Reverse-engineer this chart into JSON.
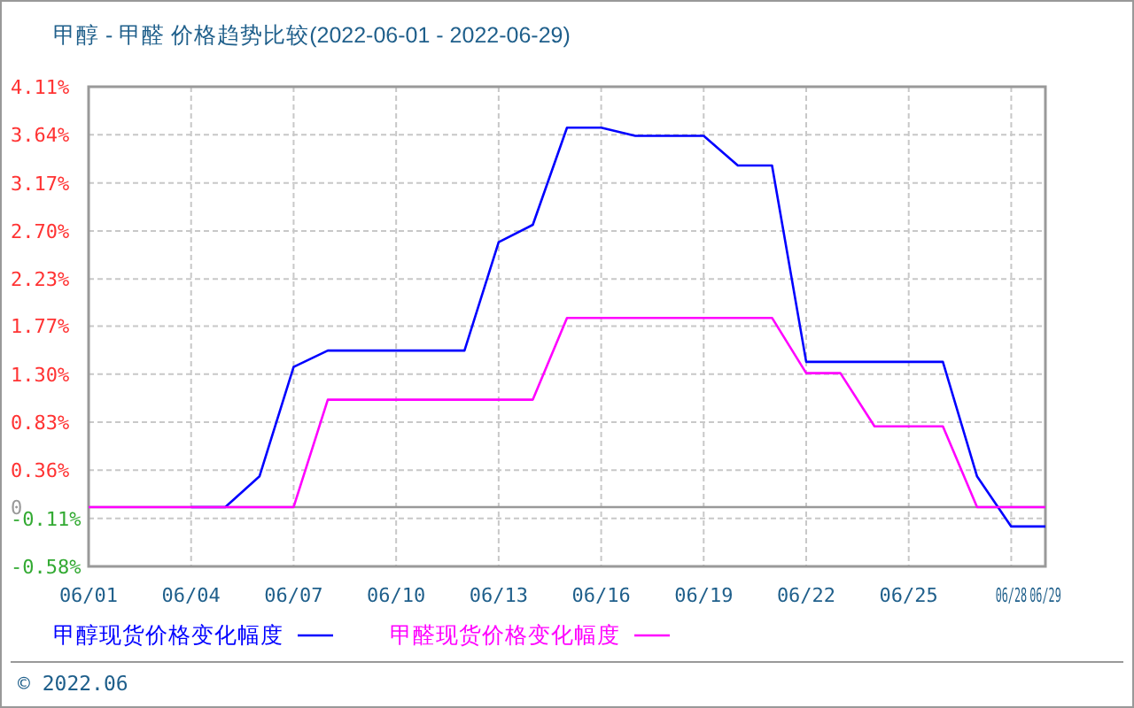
{
  "chart_data": {
    "type": "line",
    "title": "甲醇 - 甲醛 价格趋势比较(2022-06-01 - 2022-06-29)",
    "x": [
      "2022-06-01",
      "2022-06-02",
      "2022-06-03",
      "2022-06-04",
      "2022-06-05",
      "2022-06-06",
      "2022-06-07",
      "2022-06-08",
      "2022-06-09",
      "2022-06-10",
      "2022-06-11",
      "2022-06-12",
      "2022-06-13",
      "2022-06-14",
      "2022-06-15",
      "2022-06-16",
      "2022-06-17",
      "2022-06-18",
      "2022-06-19",
      "2022-06-20",
      "2022-06-21",
      "2022-06-22",
      "2022-06-23",
      "2022-06-24",
      "2022-06-25",
      "2022-06-26",
      "2022-06-27",
      "2022-06-28",
      "2022-06-29"
    ],
    "series": [
      {
        "name": "甲醇现货价格变化幅度",
        "color": "#0000ff",
        "values": [
          null,
          null,
          null,
          0,
          0,
          0.3,
          1.37,
          1.53,
          1.53,
          1.53,
          1.53,
          1.53,
          2.59,
          2.76,
          3.71,
          3.71,
          3.63,
          3.63,
          3.63,
          3.34,
          3.34,
          1.42,
          1.42,
          1.42,
          1.42,
          1.42,
          0.3,
          -0.19,
          -0.19
        ]
      },
      {
        "name": "甲醛现货价格变化幅度",
        "color": "#ff00ff",
        "values": [
          0,
          0,
          0,
          0,
          0,
          0,
          0,
          1.05,
          1.05,
          1.05,
          1.05,
          1.05,
          1.05,
          1.05,
          1.85,
          1.85,
          1.85,
          1.85,
          1.85,
          1.85,
          1.85,
          1.31,
          1.31,
          0.79,
          0.79,
          0.79,
          0,
          0,
          0
        ]
      }
    ],
    "xlim": [
      "2022-06-01",
      "2022-06-29"
    ],
    "xticks": [
      {
        "value": "2022-06-01",
        "label": "06/01"
      },
      {
        "value": "2022-06-04",
        "label": "06/04"
      },
      {
        "value": "2022-06-07",
        "label": "06/07"
      },
      {
        "value": "2022-06-10",
        "label": "06/10"
      },
      {
        "value": "2022-06-13",
        "label": "06/13"
      },
      {
        "value": "2022-06-16",
        "label": "06/16"
      },
      {
        "value": "2022-06-19",
        "label": "06/19"
      },
      {
        "value": "2022-06-22",
        "label": "06/22"
      },
      {
        "value": "2022-06-25",
        "label": "06/25"
      },
      {
        "value": "2022-06-28",
        "label": "06/28"
      },
      {
        "value": "2022-06-29",
        "label": "06/29"
      }
    ],
    "ylim": [
      -0.58,
      4.11
    ],
    "yticks": [
      {
        "value": 4.11,
        "label": "4.11%"
      },
      {
        "value": 3.64,
        "label": "3.64%"
      },
      {
        "value": 3.17,
        "label": "3.17%"
      },
      {
        "value": 2.7,
        "label": "2.70%"
      },
      {
        "value": 2.23,
        "label": "2.23%"
      },
      {
        "value": 1.77,
        "label": "1.77%"
      },
      {
        "value": 1.3,
        "label": "1.30%"
      },
      {
        "value": 0.83,
        "label": "0.83%"
      },
      {
        "value": 0.36,
        "label": "0.36%"
      },
      {
        "value": 0,
        "label": "0"
      },
      {
        "value": -0.11,
        "label": "-0.11%"
      },
      {
        "value": -0.58,
        "label": "-0.58%"
      }
    ],
    "ref_lines": [
      {
        "axis": "y",
        "value": 0,
        "color": "#999999"
      }
    ],
    "grid": true,
    "legend": "bottom",
    "line_style": "solid",
    "marker": "none",
    "annotations": [
      "© 2022.06"
    ]
  }
}
